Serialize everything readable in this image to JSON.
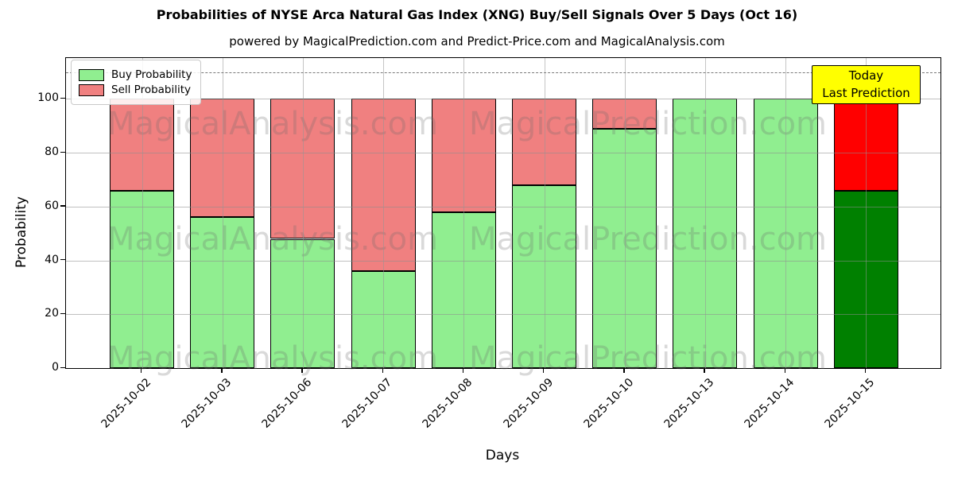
{
  "title": "Probabilities of NYSE Arca Natural Gas Index (XNG) Buy/Sell Signals Over 5 Days (Oct 16)",
  "subtitle": "powered by MagicalPrediction.com and Predict-Price.com and MagicalAnalysis.com",
  "watermarks": {
    "left_text": "MagicalAnalysis.com",
    "right_text": "MagicalPrediction.com"
  },
  "legend": [
    {
      "label": "Buy Probability",
      "color": "#90ee90"
    },
    {
      "label": "Sell Probability",
      "color": "#f08080"
    }
  ],
  "annotation": {
    "line1": "Today",
    "line2": "Last Prediction",
    "bg_color": "#ffff00"
  },
  "chart_data": {
    "type": "bar",
    "stacked": true,
    "title": "Probabilities of NYSE Arca Natural Gas Index (XNG) Buy/Sell Signals Over 5 Days (Oct 16)",
    "xlabel": "Days",
    "ylabel": "Probability",
    "categories": [
      "2025-10-02",
      "2025-10-03",
      "2025-10-06",
      "2025-10-07",
      "2025-10-08",
      "2025-10-09",
      "2025-10-10",
      "2025-10-13",
      "2025-10-14",
      "2025-10-15"
    ],
    "series": [
      {
        "name": "Buy Probability",
        "color": "#90ee90",
        "values": [
          66,
          56,
          48,
          36,
          58,
          68,
          89,
          100,
          100,
          66
        ]
      },
      {
        "name": "Sell Probability",
        "color": "#f08080",
        "values": [
          34,
          44,
          52,
          64,
          42,
          32,
          11,
          0,
          0,
          34
        ]
      }
    ],
    "today_index": 9,
    "today_colors": {
      "buy": "#008000",
      "sell": "#ff0000"
    },
    "ylim": [
      0,
      115.2
    ],
    "yticks": [
      0,
      20,
      40,
      60,
      80,
      100
    ],
    "dashed_line_y": 110,
    "grid": true,
    "legend_position": "upper left",
    "bar_edge_color": "#000000"
  }
}
